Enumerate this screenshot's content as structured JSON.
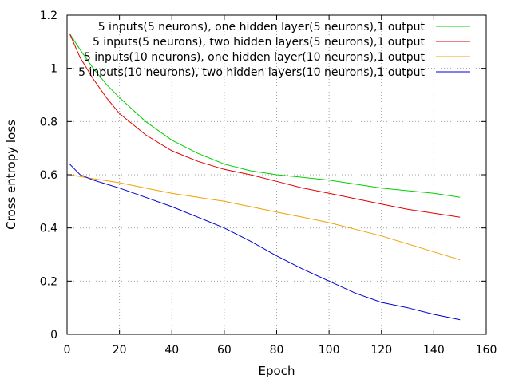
{
  "chart_data": {
    "type": "line",
    "xlabel": "Epoch",
    "ylabel": "Cross entropy loss",
    "xlim": [
      0,
      160
    ],
    "ylim": [
      0,
      1.2
    ],
    "xticks": [
      0,
      20,
      40,
      60,
      80,
      100,
      120,
      140,
      160
    ],
    "yticks": [
      0,
      0.2,
      0.4,
      0.6,
      0.8,
      1,
      1.2
    ],
    "grid": true,
    "legend_position": "top-right",
    "series": [
      {
        "name": "5 inputs(5 neurons), one hidden layer(5 neurons),1 output",
        "color": "#00d000",
        "x": [
          1,
          5,
          10,
          15,
          20,
          30,
          40,
          50,
          60,
          70,
          80,
          90,
          100,
          110,
          120,
          130,
          140,
          150
        ],
        "y": [
          1.13,
          1.07,
          1.0,
          0.94,
          0.89,
          0.8,
          0.73,
          0.68,
          0.64,
          0.615,
          0.6,
          0.59,
          0.58,
          0.565,
          0.55,
          0.54,
          0.53,
          0.515
        ]
      },
      {
        "name": "5 inputs(5 neurons), two hidden layers(5 neurons),1 output",
        "color": "#e00000",
        "x": [
          1,
          5,
          10,
          15,
          20,
          30,
          40,
          50,
          60,
          70,
          80,
          90,
          100,
          110,
          120,
          130,
          140,
          150
        ],
        "y": [
          1.13,
          1.04,
          0.96,
          0.89,
          0.83,
          0.75,
          0.69,
          0.65,
          0.62,
          0.6,
          0.575,
          0.55,
          0.53,
          0.51,
          0.49,
          0.47,
          0.455,
          0.44
        ]
      },
      {
        "name": "5 inputs(10 neurons), one hidden layer(10 neurons),1 output",
        "color": "#f0a000",
        "x": [
          1,
          10,
          20,
          30,
          40,
          50,
          60,
          70,
          80,
          90,
          100,
          110,
          120,
          130,
          140,
          150
        ],
        "y": [
          0.6,
          0.585,
          0.57,
          0.55,
          0.53,
          0.515,
          0.5,
          0.48,
          0.46,
          0.44,
          0.42,
          0.395,
          0.37,
          0.34,
          0.31,
          0.28
        ]
      },
      {
        "name": "5 inputs(10 neurons), two hidden layers(10 neurons),1 output",
        "color": "#0000d0",
        "x": [
          1,
          3,
          5,
          10,
          20,
          30,
          40,
          50,
          60,
          70,
          80,
          90,
          100,
          110,
          120,
          130,
          140,
          150
        ],
        "y": [
          0.64,
          0.62,
          0.6,
          0.58,
          0.55,
          0.515,
          0.48,
          0.44,
          0.4,
          0.35,
          0.295,
          0.245,
          0.2,
          0.155,
          0.12,
          0.1,
          0.075,
          0.055
        ]
      }
    ]
  }
}
